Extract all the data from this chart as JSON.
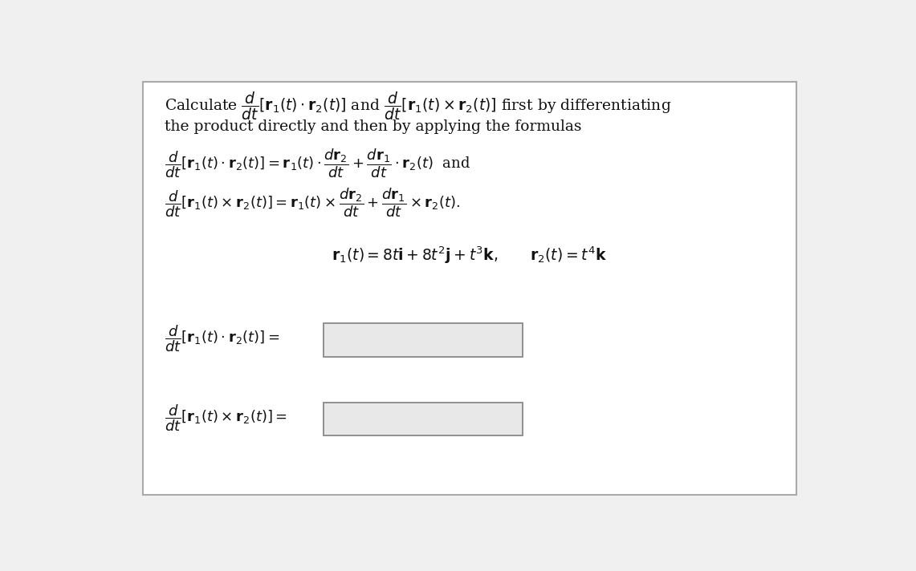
{
  "background_color": "#f0f0f0",
  "panel_color": "#ffffff",
  "border_color": "#aaaaaa",
  "text_color": "#111111",
  "box_fill_color": "#e8e8e8",
  "box_border_color": "#888888",
  "figsize": [
    11.41,
    7.12
  ],
  "dpi": 100,
  "fs_text": 13.5,
  "fs_math": 13.0
}
